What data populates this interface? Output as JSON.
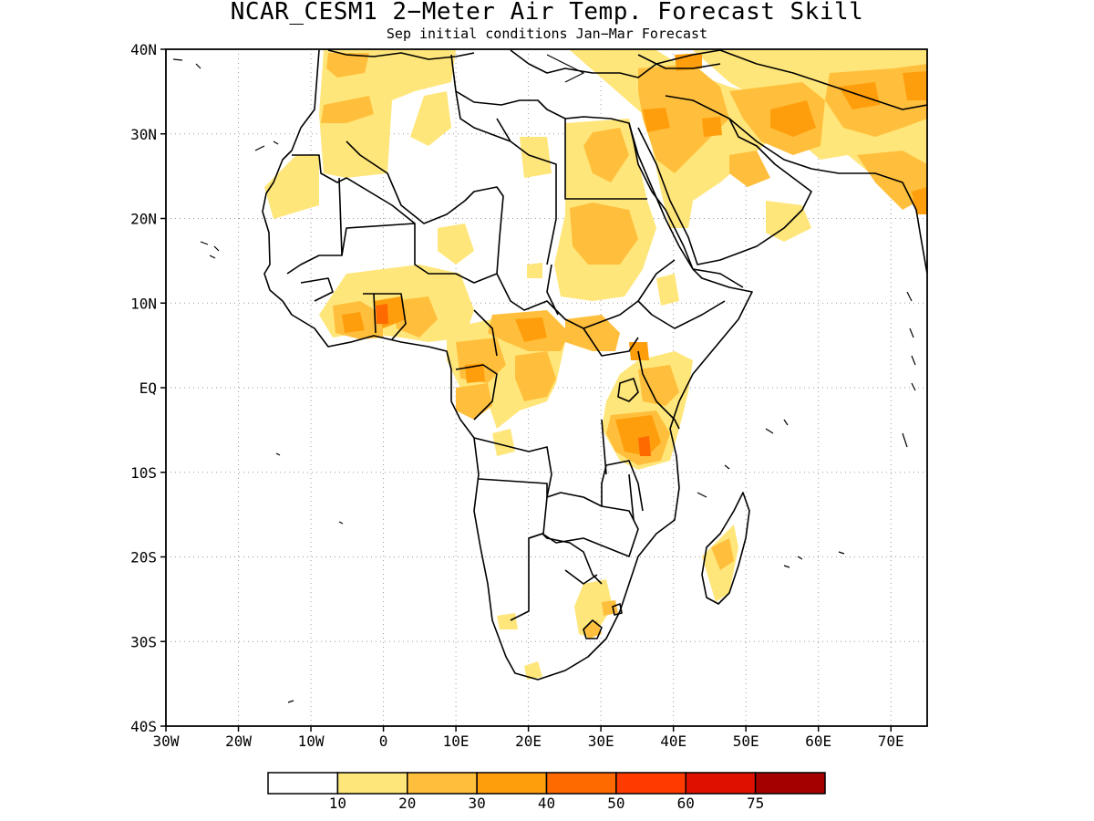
{
  "title": "NCAR_CESM1 2−Meter Air Temp. Forecast Skill",
  "subtitle": "Sep initial conditions  Jan−Mar Forecast",
  "map": {
    "projection": "lat-lon",
    "lon_range": [
      -30,
      75
    ],
    "lat_range": [
      -40,
      40
    ],
    "grid": "dotted",
    "y_ticks": [
      {
        "lat": 40,
        "label": "40N"
      },
      {
        "lat": 30,
        "label": "30N"
      },
      {
        "lat": 20,
        "label": "20N"
      },
      {
        "lat": 10,
        "label": "10N"
      },
      {
        "lat": 0,
        "label": "EQ"
      },
      {
        "lat": -10,
        "label": "10S"
      },
      {
        "lat": -20,
        "label": "20S"
      },
      {
        "lat": -30,
        "label": "30S"
      },
      {
        "lat": -40,
        "label": "40S"
      }
    ],
    "x_ticks": [
      {
        "lon": -30,
        "label": "30W"
      },
      {
        "lon": -20,
        "label": "20W"
      },
      {
        "lon": -10,
        "label": "10W"
      },
      {
        "lon": 0,
        "label": "0"
      },
      {
        "lon": 10,
        "label": "10E"
      },
      {
        "lon": 20,
        "label": "20E"
      },
      {
        "lon": 30,
        "label": "30E"
      },
      {
        "lon": 40,
        "label": "40E"
      },
      {
        "lon": 50,
        "label": "50E"
      },
      {
        "lon": 60,
        "label": "60E"
      },
      {
        "lon": 70,
        "label": "70E"
      }
    ],
    "colors": {
      "outline": "#000000",
      "level_10_20": "#ffe67a",
      "level_20_30": "#ffbf3c",
      "level_30_40": "#ff9e0c",
      "level_40_50": "#ff6a00"
    }
  },
  "colorbar": {
    "colors": [
      "#ffffff",
      "#ffe67a",
      "#ffbf3c",
      "#ff9e0c",
      "#ff6a00",
      "#ff3b00",
      "#e01000",
      "#a50000"
    ],
    "labels": [
      "10",
      "20",
      "30",
      "40",
      "50",
      "60",
      "75"
    ]
  }
}
